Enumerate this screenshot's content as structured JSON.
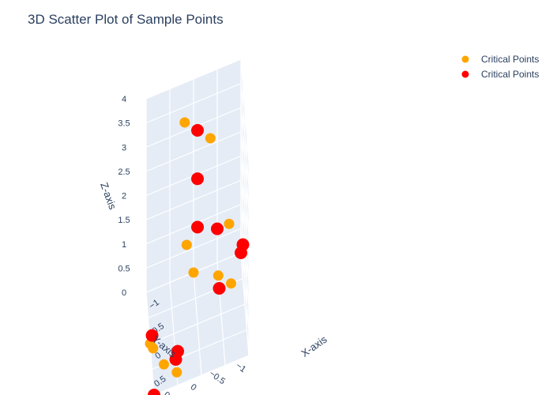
{
  "chart_data": {
    "type": "scatter3d",
    "title": "3D Scatter Plot of Sample Points",
    "xlabel": "X-axis",
    "ylabel": "Y-axis",
    "zlabel": "Z-axis",
    "xlim": [
      -1,
      1
    ],
    "ylim": [
      -1,
      1
    ],
    "zlim": [
      0,
      4
    ],
    "x_ticks": [
      "−1",
      "−0.5",
      "0",
      "0.5"
    ],
    "y_ticks": [
      "−1",
      "−0.5",
      "0",
      "0.5"
    ],
    "z_ticks": [
      "0",
      "0.5",
      "1",
      "1.5",
      "2",
      "2.5",
      "3",
      "3.5",
      "4"
    ],
    "grid": true,
    "legend_position": "top-right",
    "series": [
      {
        "name": "Critical Points",
        "color": "#FFA500",
        "marker_size": "small",
        "points": [
          {
            "x": 0.25,
            "y": -0.25,
            "z": 4.0
          },
          {
            "x": -0.25,
            "y": 0.25,
            "z": 4.0
          },
          {
            "x": 0.25,
            "y": 0.25,
            "z": 2.0
          },
          {
            "x": -1.0,
            "y": -0.75,
            "z": 0.7
          },
          {
            "x": 0.75,
            "y": 1.0,
            "z": 0.7
          },
          {
            "x": -1.0,
            "y": 0.0,
            "z": 0.0
          },
          {
            "x": -0.75,
            "y": -0.5,
            "z": 0.0
          },
          {
            "x": -0.5,
            "y": -0.75,
            "z": 0.0
          },
          {
            "x": 0.0,
            "y": 1.0,
            "z": 0.0
          },
          {
            "x": 0.5,
            "y": 0.75,
            "z": 0.0
          },
          {
            "x": 0.75,
            "y": 0.5,
            "z": 0.0
          }
        ]
      },
      {
        "name": "Critical Points",
        "color": "#FF0000",
        "marker_size": "large",
        "points": [
          {
            "x": 0.0,
            "y": 0.0,
            "z": 4.0
          },
          {
            "x": 0.0,
            "y": 0.0,
            "z": 3.0
          },
          {
            "x": 0.0,
            "y": 0.0,
            "z": 2.0
          },
          {
            "x": -1.0,
            "y": -0.5,
            "z": 0.7
          },
          {
            "x": -0.5,
            "y": -1.0,
            "z": 0.7
          },
          {
            "x": 0.5,
            "y": 1.0,
            "z": 0.7
          },
          {
            "x": 1.0,
            "y": 0.5,
            "z": 0.7
          },
          {
            "x": -1.0,
            "y": -1.0,
            "z": 0.0
          },
          {
            "x": -0.5,
            "y": -0.5,
            "z": 0.0
          },
          {
            "x": 0.5,
            "y": 0.5,
            "z": 0.0
          },
          {
            "x": 1.0,
            "y": 1.0,
            "z": 0.0
          }
        ]
      }
    ]
  }
}
